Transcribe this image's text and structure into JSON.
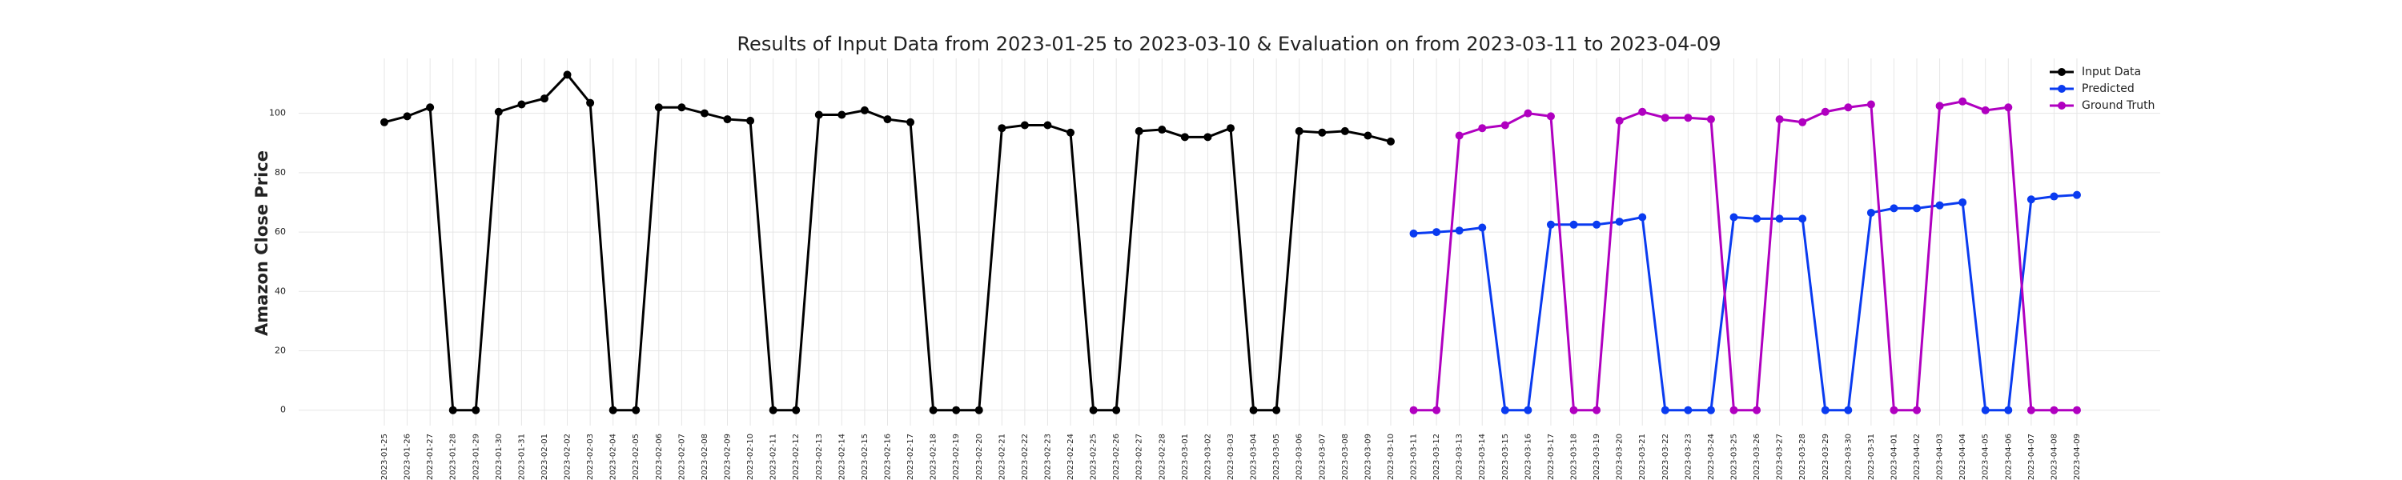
{
  "chart_data": {
    "type": "line",
    "title": "Results of Input Data from 2023-01-25 to 2023-03-10 & Evaluation on from 2023-03-11 to 2023-04-09",
    "y_label": "Amazon Close Price",
    "x": [
      "2023-01-25",
      "2023-01-26",
      "2023-01-27",
      "2023-01-28",
      "2023-01-29",
      "2023-01-30",
      "2023-01-31",
      "2023-02-01",
      "2023-02-02",
      "2023-02-03",
      "2023-02-04",
      "2023-02-05",
      "2023-02-06",
      "2023-02-07",
      "2023-02-08",
      "2023-02-09",
      "2023-02-10",
      "2023-02-11",
      "2023-02-12",
      "2023-02-13",
      "2023-02-14",
      "2023-02-15",
      "2023-02-16",
      "2023-02-17",
      "2023-02-18",
      "2023-02-19",
      "2023-02-20",
      "2023-02-21",
      "2023-02-22",
      "2023-02-23",
      "2023-02-24",
      "2023-02-25",
      "2023-02-26",
      "2023-02-27",
      "2023-02-28",
      "2023-03-01",
      "2023-03-02",
      "2023-03-03",
      "2023-03-04",
      "2023-03-05",
      "2023-03-06",
      "2023-03-07",
      "2023-03-08",
      "2023-03-09",
      "2023-03-10",
      "2023-03-11",
      "2023-03-12",
      "2023-03-13",
      "2023-03-14",
      "2023-03-15",
      "2023-03-16",
      "2023-03-17",
      "2023-03-18",
      "2023-03-19",
      "2023-03-20",
      "2023-03-21",
      "2023-03-22",
      "2023-03-23",
      "2023-03-24",
      "2023-03-25",
      "2023-03-26",
      "2023-03-27",
      "2023-03-28",
      "2023-03-29",
      "2023-03-30",
      "2023-03-31",
      "2023-04-01",
      "2023-04-02",
      "2023-04-03",
      "2023-04-04",
      "2023-04-05",
      "2023-04-06",
      "2023-04-07",
      "2023-04-08",
      "2023-04-09"
    ],
    "series": [
      {
        "name": "Input Data",
        "color": "#000000",
        "values": [
          97,
          99,
          102,
          0,
          0,
          100.5,
          103,
          105,
          113,
          103.5,
          0,
          0,
          102,
          102,
          100,
          98,
          97.5,
          0,
          0,
          99.5,
          99.5,
          101,
          98,
          97,
          0,
          0,
          0,
          95,
          96,
          96,
          93.5,
          0,
          0,
          94,
          94.5,
          92,
          92,
          95,
          0,
          0,
          94,
          93.5,
          94,
          92.5,
          90.5,
          null,
          null,
          null,
          null,
          null,
          null,
          null,
          null,
          null,
          null,
          null,
          null,
          null,
          null,
          null,
          null,
          null,
          null,
          null,
          null,
          null,
          null,
          null,
          null,
          null,
          null,
          null,
          null,
          null,
          null
        ]
      },
      {
        "name": "Predicted",
        "color": "#0a3bf0",
        "values": [
          null,
          null,
          null,
          null,
          null,
          null,
          null,
          null,
          null,
          null,
          null,
          null,
          null,
          null,
          null,
          null,
          null,
          null,
          null,
          null,
          null,
          null,
          null,
          null,
          null,
          null,
          null,
          null,
          null,
          null,
          null,
          null,
          null,
          null,
          null,
          null,
          null,
          null,
          null,
          null,
          null,
          null,
          null,
          null,
          null,
          59.5,
          60,
          60.5,
          61.5,
          0,
          0,
          62.5,
          62.5,
          62.5,
          63.5,
          65,
          0,
          0,
          0,
          65,
          64.5,
          64.5,
          64.5,
          0,
          0,
          66.5,
          68,
          68,
          69,
          70,
          0,
          0,
          71,
          72,
          72.5
        ]
      },
      {
        "name": "Ground Truth",
        "color": "#b000c0",
        "values": [
          null,
          null,
          null,
          null,
          null,
          null,
          null,
          null,
          null,
          null,
          null,
          null,
          null,
          null,
          null,
          null,
          null,
          null,
          null,
          null,
          null,
          null,
          null,
          null,
          null,
          null,
          null,
          null,
          null,
          null,
          null,
          null,
          null,
          null,
          null,
          null,
          null,
          null,
          null,
          null,
          null,
          null,
          null,
          null,
          null,
          0,
          0,
          92.5,
          95,
          96,
          100,
          99,
          0,
          0,
          97.5,
          100.5,
          98.5,
          98.5,
          98,
          0,
          0,
          98,
          97,
          100.5,
          102,
          103,
          0,
          0,
          102.5,
          104,
          101,
          102,
          0,
          0,
          0
        ]
      }
    ],
    "ylim": [
      -5.2,
      118.5
    ],
    "yticks": [
      0,
      20,
      40,
      60,
      80,
      100
    ],
    "grid": true,
    "legend": "upper right"
  }
}
